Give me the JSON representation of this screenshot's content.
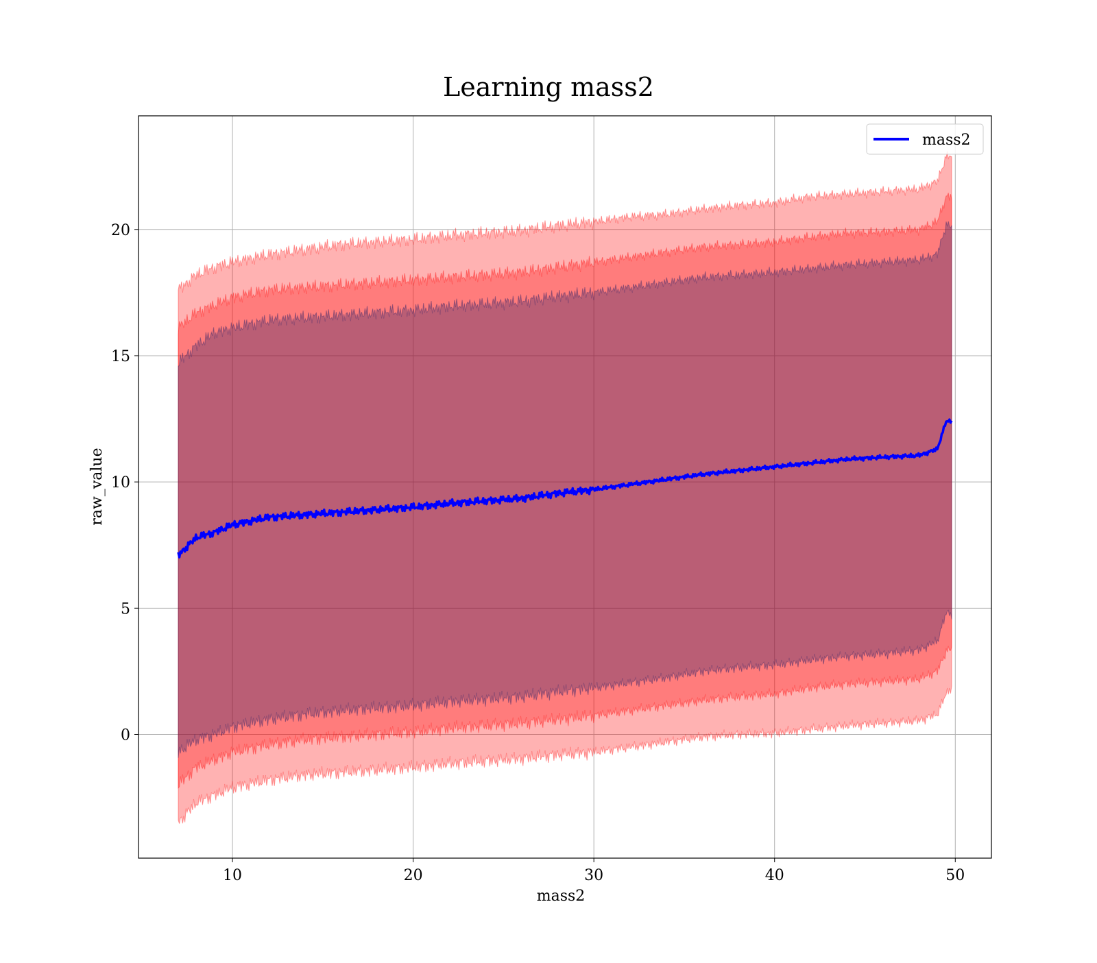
{
  "chart_data": {
    "type": "line",
    "title": "Learning mass2",
    "xlabel": "mass2",
    "ylabel": "raw_value",
    "xlim": [
      4.8,
      52.0
    ],
    "ylim": [
      -4.9,
      24.5
    ],
    "xticks": [
      10,
      20,
      30,
      40,
      50
    ],
    "xtick_labels": [
      "10",
      "20",
      "30",
      "40",
      "50"
    ],
    "yticks": [
      0,
      5,
      10,
      15,
      20
    ],
    "ytick_labels": [
      "0",
      "5",
      "10",
      "15",
      "20"
    ],
    "grid": true,
    "legend": {
      "position": "top-right",
      "entries": [
        "mass2"
      ]
    },
    "series": [
      {
        "name": "mass2",
        "color": "#0000ff",
        "x": [
          7.0,
          8.0,
          9.0,
          10.0,
          12.0,
          14.0,
          16.0,
          18.0,
          20.0,
          22.0,
          24.0,
          26.0,
          28.0,
          30.0,
          32.0,
          34.0,
          36.0,
          38.0,
          40.0,
          42.0,
          44.0,
          46.0,
          48.0,
          49.0,
          49.5,
          49.8
        ],
        "y": [
          7.1,
          7.8,
          8.0,
          8.3,
          8.6,
          8.7,
          8.8,
          8.9,
          9.0,
          9.15,
          9.25,
          9.35,
          9.55,
          9.7,
          9.9,
          10.1,
          10.3,
          10.45,
          10.6,
          10.75,
          10.9,
          10.98,
          11.05,
          11.3,
          12.4,
          12.4
        ]
      }
    ],
    "bands": [
      {
        "color": "#ff0000",
        "opacity": 0.3,
        "x": [
          7.0,
          8.0,
          9.0,
          10.0,
          12.0,
          14.0,
          16.0,
          18.0,
          20.0,
          22.0,
          24.0,
          26.0,
          28.0,
          30.0,
          32.0,
          34.0,
          36.0,
          38.0,
          40.0,
          42.0,
          44.0,
          46.0,
          48.0,
          49.0,
          49.5,
          49.8
        ],
        "lower": [
          -3.5,
          -2.7,
          -2.4,
          -2.1,
          -1.8,
          -1.6,
          -1.5,
          -1.4,
          -1.3,
          -1.15,
          -1.05,
          -0.95,
          -0.8,
          -0.7,
          -0.5,
          -0.3,
          -0.1,
          0.0,
          0.05,
          0.2,
          0.35,
          0.45,
          0.55,
          0.8,
          1.6,
          1.9
        ],
        "upper": [
          17.6,
          18.2,
          18.5,
          18.7,
          19.0,
          19.2,
          19.4,
          19.5,
          19.6,
          19.75,
          19.85,
          19.95,
          20.15,
          20.3,
          20.5,
          20.6,
          20.8,
          20.95,
          21.05,
          21.3,
          21.4,
          21.5,
          21.6,
          21.9,
          22.9,
          22.9
        ]
      },
      {
        "color": "#ff0000",
        "opacity": 0.3,
        "x": [
          7.0,
          8.0,
          9.0,
          10.0,
          12.0,
          14.0,
          16.0,
          18.0,
          20.0,
          22.0,
          24.0,
          26.0,
          28.0,
          30.0,
          32.0,
          34.0,
          36.0,
          38.0,
          40.0,
          42.0,
          44.0,
          46.0,
          48.0,
          49.0,
          49.5,
          49.8
        ],
        "lower": [
          -2.0,
          -1.3,
          -1.0,
          -0.7,
          -0.4,
          -0.2,
          -0.1,
          0.0,
          0.1,
          0.25,
          0.35,
          0.45,
          0.6,
          0.75,
          0.95,
          1.15,
          1.35,
          1.5,
          1.6,
          1.85,
          2.0,
          2.1,
          2.2,
          2.5,
          3.3,
          3.4
        ],
        "upper": [
          16.1,
          16.7,
          17.0,
          17.3,
          17.6,
          17.7,
          17.8,
          17.9,
          18.0,
          18.1,
          18.2,
          18.3,
          18.5,
          18.7,
          18.9,
          19.1,
          19.3,
          19.4,
          19.5,
          19.7,
          19.85,
          19.9,
          20.0,
          20.3,
          21.3,
          21.3
        ]
      },
      {
        "color": "#1a1a66",
        "opacity": 0.3,
        "x": [
          7.0,
          8.0,
          9.0,
          10.0,
          12.0,
          14.0,
          16.0,
          18.0,
          20.0,
          22.0,
          24.0,
          26.0,
          28.0,
          30.0,
          32.0,
          34.0,
          36.0,
          38.0,
          40.0,
          42.0,
          44.0,
          46.0,
          48.0,
          49.0,
          49.5,
          49.8
        ],
        "lower": [
          -0.7,
          -0.2,
          0.0,
          0.3,
          0.6,
          0.8,
          0.95,
          1.05,
          1.15,
          1.3,
          1.4,
          1.5,
          1.7,
          1.85,
          2.05,
          2.25,
          2.5,
          2.65,
          2.75,
          2.95,
          3.1,
          3.2,
          3.35,
          3.7,
          4.8,
          4.8
        ],
        "upper": [
          14.7,
          15.4,
          15.9,
          16.1,
          16.4,
          16.5,
          16.6,
          16.7,
          16.8,
          16.95,
          17.05,
          17.15,
          17.35,
          17.5,
          17.7,
          17.9,
          18.1,
          18.2,
          18.3,
          18.45,
          18.6,
          18.7,
          18.8,
          19.0,
          20.2,
          20.1
        ]
      }
    ]
  }
}
